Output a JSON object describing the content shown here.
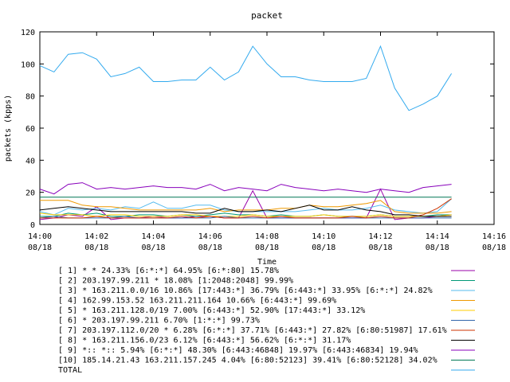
{
  "chart_data": {
    "type": "line",
    "title": "packet",
    "xlabel": "Time",
    "ylabel": "packets (kpps)",
    "ylim": [
      0,
      120
    ],
    "yticks": [
      0,
      20,
      40,
      60,
      80,
      100,
      120
    ],
    "xlim": [
      "2000-08-18 14:00",
      "2000-08-18 14:16"
    ],
    "xticks": [
      {
        "time": "14:00",
        "date": "08/18"
      },
      {
        "time": "14:02",
        "date": "08/18"
      },
      {
        "time": "14:04",
        "date": "08/18"
      },
      {
        "time": "14:06",
        "date": "08/18"
      },
      {
        "time": "14:08",
        "date": "08/18"
      },
      {
        "time": "14:10",
        "date": "08/18"
      },
      {
        "time": "14:12",
        "date": "08/18"
      },
      {
        "time": "14:14",
        "date": "08/18"
      },
      {
        "time": "14:16",
        "date": "08/18"
      }
    ],
    "grid": false,
    "legend_position": "bottom",
    "x": [
      "14:00:00",
      "14:00:30",
      "14:01:00",
      "14:01:30",
      "14:02:00",
      "14:02:30",
      "14:03:00",
      "14:03:30",
      "14:04:00",
      "14:04:30",
      "14:05:00",
      "14:05:30",
      "14:06:00",
      "14:06:30",
      "14:07:00",
      "14:07:30",
      "14:08:00",
      "14:08:30",
      "14:09:00",
      "14:09:30",
      "14:10:00",
      "14:10:30",
      "14:11:00",
      "14:11:30",
      "14:12:00",
      "14:12:30",
      "14:13:00",
      "14:13:30",
      "14:14:00",
      "14:14:30"
    ],
    "series": [
      {
        "name": "[ 1] * * 24.33%  [6:*:*] 64.95% [6:*:80] 15.78%",
        "color": "#9900aa",
        "values": [
          3,
          4,
          6,
          5,
          11,
          3,
          4,
          4,
          5,
          4,
          4,
          5,
          5,
          4,
          4,
          21,
          4,
          4,
          4,
          4,
          4,
          4,
          4,
          4,
          22,
          3,
          4,
          4,
          5,
          6
        ]
      },
      {
        "name": "[ 2] 203.197.99.211 * 18.08%  [1:2048:2048] 99.99%",
        "color": "#009977",
        "values": [
          5,
          5,
          7,
          6,
          7,
          5,
          5,
          6,
          6,
          5,
          6,
          5,
          6,
          7,
          6,
          6,
          5,
          6,
          5,
          5,
          6,
          5,
          5,
          5,
          6,
          5,
          5,
          5,
          6,
          6
        ]
      },
      {
        "name": "[ 3] * 163.211.0.0/16 10.86%  [17:443:*] 36.79% [6:443:*] 33.95% [6:*:*] 24.82%",
        "color": "#55bbee",
        "values": [
          8,
          6,
          10,
          9,
          10,
          9,
          11,
          10,
          14,
          10,
          10,
          12,
          12,
          9,
          8,
          8,
          8,
          8,
          8,
          9,
          10,
          9,
          9,
          10,
          12,
          9,
          8,
          7,
          8,
          16
        ]
      },
      {
        "name": "[ 4] 162.99.153.52 163.211.211.164 10.66%  [6:443:*] 99.69%",
        "color": "#ee9900",
        "values": [
          15,
          15,
          15,
          12,
          11,
          11,
          10,
          9,
          9,
          9,
          9,
          9,
          10,
          8,
          9,
          9,
          9,
          10,
          10,
          12,
          11,
          11,
          12,
          13,
          15,
          8,
          7,
          7,
          7,
          8
        ]
      },
      {
        "name": "[ 5] * 163.211.128.0/19 7.00%  [6:443:*] 52.90% [17:443:*] 33.12%",
        "color": "#ffcc00",
        "values": [
          7,
          6,
          6,
          6,
          5,
          6,
          6,
          5,
          5,
          5,
          6,
          6,
          5,
          5,
          5,
          6,
          5,
          5,
          5,
          5,
          6,
          5,
          5,
          5,
          6,
          5,
          5,
          5,
          5,
          6
        ]
      },
      {
        "name": "[ 6] * 203.197.99.211 6.70%  [1:*:*] 99.73%",
        "color": "#3366aa",
        "values": [
          4,
          5,
          4,
          4,
          4,
          4,
          5,
          4,
          4,
          4,
          4,
          4,
          4,
          5,
          4,
          4,
          4,
          4,
          4,
          4,
          4,
          4,
          4,
          4,
          4,
          4,
          4,
          4,
          4,
          4
        ]
      },
      {
        "name": "[ 7] 203.197.112.0/20 * 6.28%  [6:*:*] 37.71% [6:443:*] 27.82% [6:80:51987] 17.61%",
        "color": "#cc3300",
        "values": [
          4,
          4,
          4,
          4,
          5,
          4,
          4,
          4,
          4,
          4,
          5,
          4,
          5,
          4,
          4,
          5,
          4,
          5,
          4,
          4,
          4,
          4,
          5,
          4,
          5,
          4,
          4,
          6,
          10,
          16
        ]
      },
      {
        "name": "[ 8] * 163.211.156.0/23 6.12%  [6:443:*] 56.62% [6:*:*] 31.17%",
        "color": "#000000",
        "values": [
          9,
          10,
          11,
          10,
          9,
          8,
          8,
          8,
          8,
          8,
          8,
          7,
          7,
          10,
          8,
          8,
          9,
          8,
          10,
          12,
          9,
          9,
          11,
          9,
          8,
          6,
          6,
          5,
          5,
          5
        ]
      },
      {
        "name": "[ 9] *:: *:: 5.94%  [6:*:*] 48.30% [6:443:46848] 19.97% [6:443:46834] 19.94%",
        "color": "#8800bb",
        "values": [
          22,
          19,
          25,
          26,
          22,
          23,
          22,
          23,
          24,
          23,
          23,
          22,
          25,
          21,
          23,
          22,
          21,
          25,
          23,
          22,
          21,
          22,
          21,
          20,
          22,
          21,
          20,
          23,
          24,
          25
        ]
      },
      {
        "name": "[10] 185.14.21.43 163.211.157.245 4.04%  [6:80:52123] 39.41% [6:80:52128] 34.02%",
        "color": "#007755",
        "values": [
          17,
          17,
          17,
          17,
          17,
          17,
          17,
          17,
          17,
          17,
          17,
          17,
          17,
          17,
          17,
          17,
          17,
          17,
          17,
          17,
          17,
          17,
          17,
          17,
          17,
          17,
          17,
          17,
          17,
          17
        ]
      },
      {
        "name": "TOTAL",
        "color": "#33aaee",
        "values": [
          99,
          95,
          106,
          107,
          103,
          92,
          94,
          98,
          89,
          89,
          90,
          90,
          98,
          90,
          95,
          111,
          100,
          92,
          92,
          90,
          89,
          89,
          89,
          91,
          111,
          85,
          71,
          75,
          80,
          94
        ]
      }
    ]
  }
}
